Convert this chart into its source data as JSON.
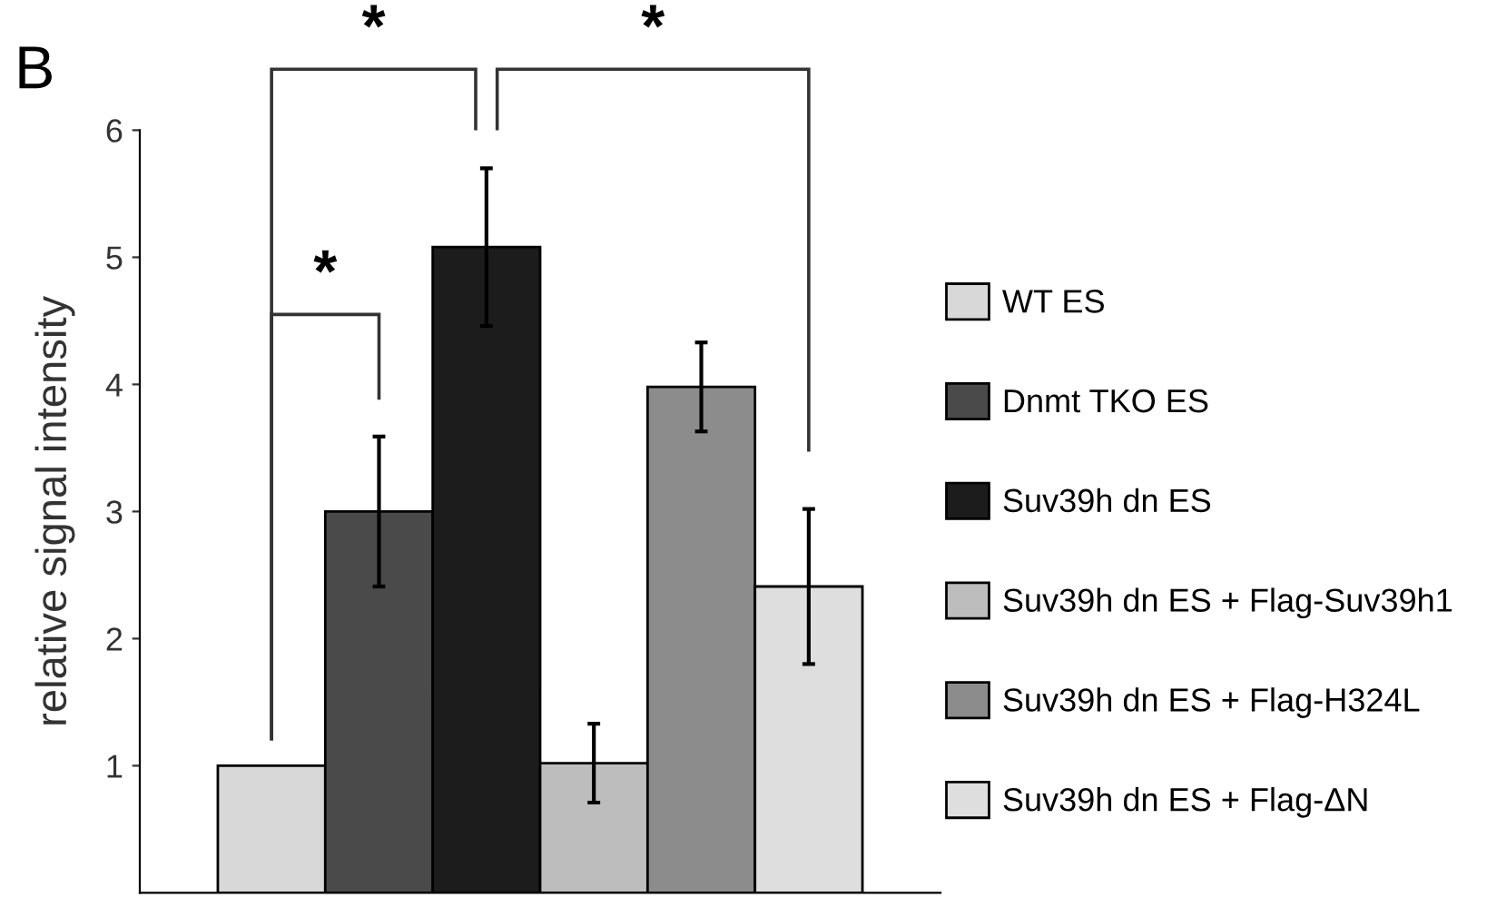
{
  "chart_data": {
    "type": "bar",
    "ylabel": "relative signal intensity",
    "categories": [
      null,
      null,
      null,
      null,
      null,
      null
    ],
    "series": [
      {
        "name": "WT ES",
        "color": "#d8d8d8",
        "values": [
          1.0,
          null,
          null,
          null,
          null,
          null
        ],
        "errors": [
          null,
          null,
          null,
          null,
          null,
          null
        ]
      },
      {
        "name": "Dnmt TKO ES",
        "color": "#4a4a4a",
        "values": [
          null,
          3.0,
          null,
          null,
          null,
          null
        ],
        "errors": [
          null,
          0.59,
          null,
          null,
          null,
          null
        ]
      },
      {
        "name": "Suv39h dn ES",
        "color": "#1c1c1c",
        "values": [
          null,
          null,
          5.08,
          null,
          null,
          null
        ],
        "errors": [
          null,
          null,
          0.62,
          null,
          null,
          null
        ]
      },
      {
        "name": "Suv39h dn ES + Flag-Suv39h1",
        "color": "#bdbdbd",
        "values": [
          null,
          null,
          null,
          1.02,
          null,
          null
        ],
        "errors": [
          null,
          null,
          null,
          0.31,
          null,
          null
        ]
      },
      {
        "name": "Suv39h dn ES + Flag-H324L",
        "color": "#8c8c8c",
        "values": [
          null,
          null,
          null,
          null,
          3.98,
          null
        ],
        "errors": [
          null,
          null,
          null,
          null,
          0.35,
          null
        ]
      },
      {
        "name": "Suv39h dn ES + Flag-ΔN",
        "color": "#dedede",
        "values": [
          null,
          null,
          null,
          null,
          null,
          2.41
        ],
        "errors": [
          null,
          null,
          null,
          null,
          null,
          0.61
        ]
      }
    ],
    "ylim": [
      0,
      6
    ],
    "yticks": [
      1,
      2,
      3,
      4,
      5,
      6
    ],
    "grid": false,
    "legend": "right",
    "annotations": [
      "B",
      "*",
      "*",
      "*"
    ]
  }
}
